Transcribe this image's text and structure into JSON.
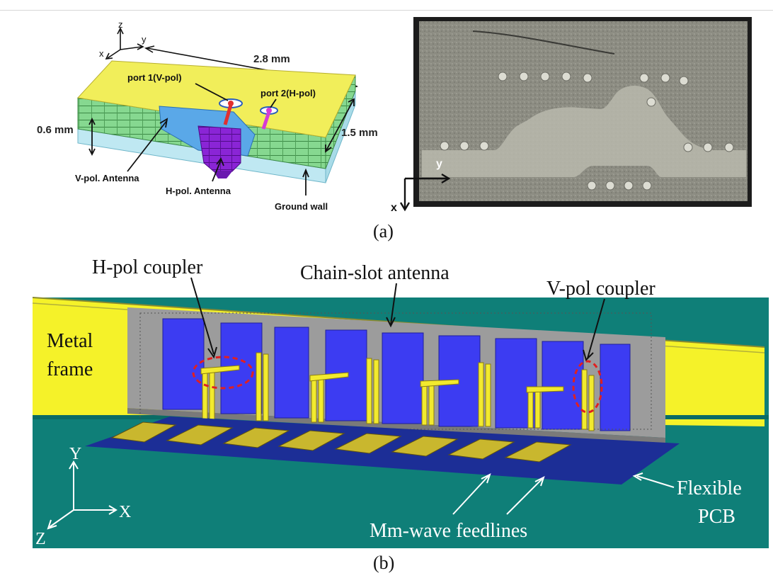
{
  "figure_a": {
    "caption": "(a)",
    "axes": {
      "z": "z",
      "y": "y",
      "x": "x"
    },
    "dim_length": "2.8 mm",
    "dim_height": "0.6 mm",
    "dim_width": "1.5 mm",
    "port1": "port 1(V-pol)",
    "port2": "port 2(H-pol)",
    "v_antenna": "V-pol. Antenna",
    "h_antenna": "H-pol. Antenna",
    "ground_wall": "Ground wall",
    "photo_axis_y": "y",
    "photo_axis_x": "x"
  },
  "figure_b": {
    "caption": "(b)",
    "h_coupler": "H-pol coupler",
    "chain_slot": "Chain-slot antenna",
    "v_coupler": "V-pol coupler",
    "metal_frame_1": "Metal",
    "metal_frame_2": "frame",
    "flexible_1": "Flexible",
    "flexible_2": "PCB",
    "feedlines": "Mm-wave feedlines",
    "axis_y": "Y",
    "axis_x": "X",
    "axis_z": "Z"
  },
  "colors": {
    "metal_yellow": "#f4f227",
    "antenna_blue": "#3d3df0",
    "pcb_teal": "#0f7f78",
    "frame_gray": "#9a9a9a",
    "stack_green": "#7ed28a",
    "h_purple": "#7a1fc9"
  }
}
